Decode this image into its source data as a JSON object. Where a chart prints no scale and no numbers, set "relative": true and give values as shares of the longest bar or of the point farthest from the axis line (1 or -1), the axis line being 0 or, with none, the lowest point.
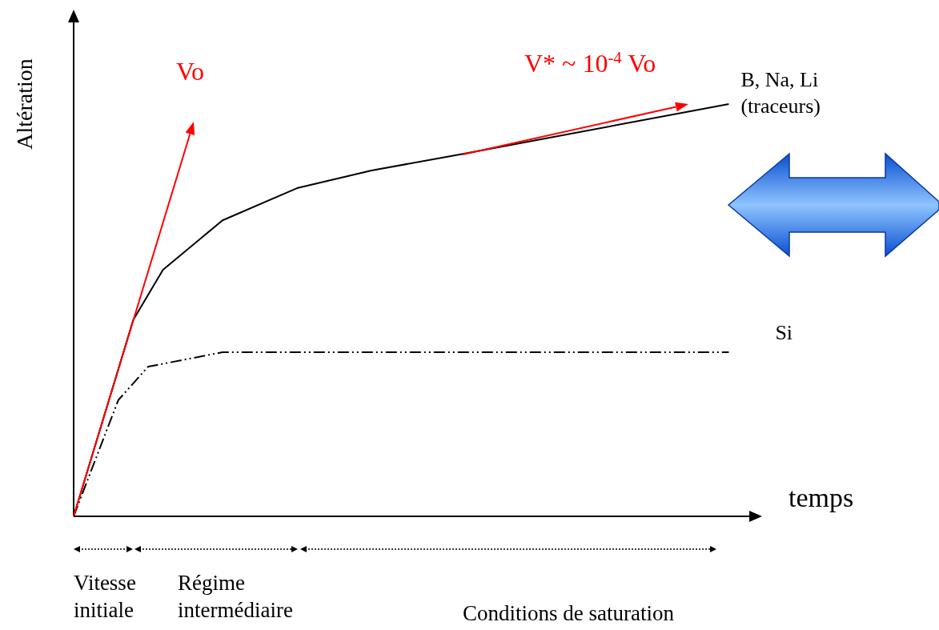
{
  "chart_data": {
    "type": "line",
    "relative": true,
    "xlabel": "temps",
    "ylabel": "Altération",
    "categories": [
      null,
      null,
      null,
      null,
      null,
      null,
      null,
      null,
      null,
      null,
      null,
      null,
      null,
      null,
      null,
      null,
      null,
      null,
      null,
      null,
      null,
      null,
      null,
      null,
      null,
      null,
      null,
      null,
      null,
      null,
      null,
      null,
      null,
      null,
      null,
      null,
      null,
      null,
      null,
      null,
      null,
      null,
      null,
      null,
      null,
      null
    ],
    "series": [
      {
        "name": "B, Na, Li\n(traceurs)",
        "color": "#000000",
        "line_style": "solid",
        "values": [
          0,
          null,
          null,
          null,
          0.476,
          null,
          0.598,
          null,
          null,
          null,
          0.718,
          null,
          null,
          null,
          null,
          0.796,
          null,
          null,
          null,
          null,
          0.839,
          null,
          null,
          null,
          null,
          null,
          0.878,
          null,
          null,
          null,
          null,
          null,
          null,
          null,
          null,
          null,
          null,
          null,
          null,
          null,
          null,
          null,
          null,
          null,
          1,
          null
        ]
      },
      {
        "name": "Si",
        "color": "#000000",
        "line_style": "dashed",
        "values": [
          0,
          null,
          null,
          0.282,
          null,
          0.363,
          null,
          null,
          null,
          null,
          0.398,
          null,
          null,
          null,
          null,
          null,
          null,
          null,
          null,
          null,
          null,
          null,
          null,
          null,
          null,
          null,
          null,
          null,
          null,
          null,
          null,
          null,
          null,
          null,
          null,
          null,
          null,
          null,
          null,
          null,
          null,
          null,
          null,
          null,
          0.398,
          null
        ]
      }
    ],
    "annotations": [
      "Vo",
      "V* ~ 10$^{-4}$ Vo",
      "Vitesse\ninitiale",
      "Régime\nintermédiaire",
      "Conditions de saturation"
    ]
  }
}
